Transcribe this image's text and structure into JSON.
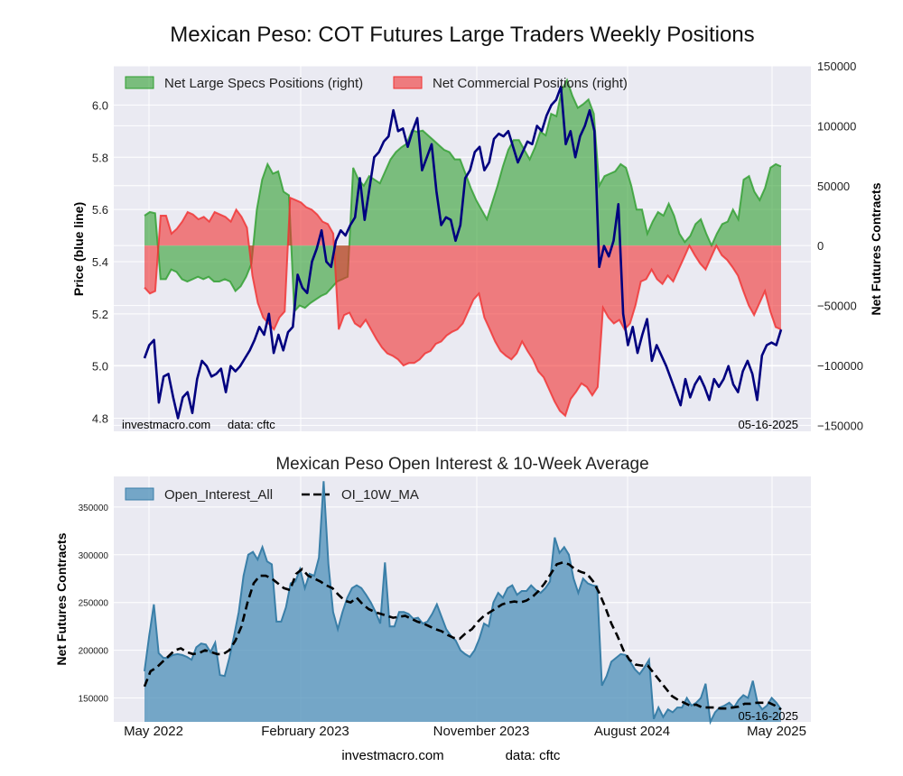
{
  "chart_data": [
    {
      "type": "area",
      "title": "Mexican Peso: COT Futures Large Traders Weekly Positions",
      "ylabel_left": "Price (blue line)",
      "ylabel_right": "Net Futures Contracts",
      "ylim_left": [
        4.75,
        6.15
      ],
      "ylim_right": [
        -155000,
        150000
      ],
      "yticks_left": [
        "4.8",
        "5.0",
        "5.2",
        "5.4",
        "5.6",
        "5.8",
        "6.0"
      ],
      "yticks_right": [
        "-150000",
        "-100000",
        "-50000",
        "0",
        "50000",
        "100000",
        "150000"
      ],
      "grid": true,
      "legend_placement": "top-left",
      "watermark": "investmacro.com",
      "source": "data: cftc",
      "date_label": "05-16-2025",
      "x_start": "2022-05-17",
      "x_end": "2025-05-16",
      "series": [
        {
          "name": "Net Large Specs Positions (right)",
          "color": "#2e9e2e",
          "values": [
            25000,
            28000,
            27000,
            -28000,
            -28000,
            -20000,
            -22000,
            -28000,
            -30000,
            -28000,
            -26000,
            -28000,
            -26000,
            -30000,
            -30000,
            -28000,
            -30000,
            -38000,
            -34000,
            -26000,
            -15000,
            30000,
            55000,
            68000,
            60000,
            62000,
            45000,
            42000,
            -55000,
            -50000,
            -52000,
            -48000,
            -45000,
            -42000,
            -40000,
            -35000,
            -30000,
            -28000,
            -26000,
            65000,
            55000,
            50000,
            58000,
            55000,
            52000,
            62000,
            72000,
            78000,
            82000,
            85000,
            96000,
            95000,
            96000,
            92000,
            88000,
            84000,
            80000,
            78000,
            72000,
            72000,
            60000,
            48000,
            38000,
            30000,
            22000,
            36000,
            50000,
            66000,
            80000,
            88000,
            88000,
            80000,
            72000,
            82000,
            95000,
            92000,
            110000,
            108000,
            130000,
            138000,
            125000,
            115000,
            118000,
            122000,
            110000,
            50000,
            58000,
            60000,
            62000,
            68000,
            65000,
            50000,
            30000,
            30000,
            10000,
            20000,
            28000,
            25000,
            35000,
            25000,
            10000,
            3000,
            8000,
            18000,
            22000,
            10000,
            0,
            10000,
            18000,
            20000,
            30000,
            22000,
            55000,
            58000,
            45000,
            38000,
            48000,
            65000,
            68000,
            66000
          ]
        },
        {
          "name": "Net Commercial Positions (right)",
          "color": "#f03030",
          "values": [
            -35000,
            -40000,
            -38000,
            25000,
            25000,
            10000,
            14000,
            20000,
            28000,
            26000,
            22000,
            24000,
            20000,
            28000,
            26000,
            24000,
            20000,
            30000,
            24000,
            15000,
            -25000,
            -48000,
            -60000,
            -65000,
            -70000,
            -60000,
            -55000,
            40000,
            38000,
            36000,
            32000,
            30000,
            26000,
            20000,
            18000,
            10000,
            -70000,
            -58000,
            -56000,
            -65000,
            -68000,
            -62000,
            -70000,
            -78000,
            -85000,
            -90000,
            -92000,
            -95000,
            -100000,
            -98000,
            -98000,
            -95000,
            -90000,
            -88000,
            -82000,
            -80000,
            -75000,
            -72000,
            -70000,
            -65000,
            -55000,
            -45000,
            -40000,
            -60000,
            -70000,
            -80000,
            -88000,
            -92000,
            -95000,
            -90000,
            -80000,
            -88000,
            -95000,
            -105000,
            -110000,
            -120000,
            -130000,
            -138000,
            -142000,
            -128000,
            -122000,
            -115000,
            -118000,
            -125000,
            -118000,
            -52000,
            -60000,
            -65000,
            -62000,
            -70000,
            -65000,
            -50000,
            -30000,
            -28000,
            -20000,
            -28000,
            -32000,
            -25000,
            -30000,
            -20000,
            -10000,
            0,
            -8000,
            -15000,
            -20000,
            -10000,
            0,
            -8000,
            -12000,
            -18000,
            -25000,
            -38000,
            -50000,
            -58000,
            -48000,
            -38000,
            -55000,
            -68000,
            -70000
          ]
        },
        {
          "name": "Price (blue line)",
          "color": "#00007f",
          "values": [
            5.03,
            5.08,
            5.1,
            4.86,
            4.96,
            4.97,
            4.88,
            4.8,
            4.88,
            4.9,
            4.82,
            4.95,
            5.02,
            5.0,
            4.96,
            4.97,
            4.99,
            4.9,
            5.0,
            4.98,
            5.0,
            5.03,
            5.06,
            5.1,
            5.15,
            5.12,
            5.2,
            5.05,
            5.12,
            5.06,
            5.13,
            5.15,
            5.35,
            5.3,
            5.28,
            5.4,
            5.45,
            5.52,
            5.4,
            5.38,
            5.48,
            5.52,
            5.5,
            5.54,
            5.57,
            5.72,
            5.56,
            5.68,
            5.8,
            5.82,
            5.86,
            5.88,
            5.98,
            5.9,
            5.91,
            5.84,
            5.9,
            5.95,
            5.75,
            5.8,
            5.85,
            5.67,
            5.54,
            5.57,
            5.56,
            5.48,
            5.54,
            5.72,
            5.75,
            5.82,
            5.84,
            5.75,
            5.78,
            5.87,
            5.89,
            5.88,
            5.9,
            5.84,
            5.78,
            5.82,
            5.86,
            5.85,
            5.92,
            5.9,
            5.96,
            6.0,
            6.02,
            6.07,
            5.85,
            5.9,
            5.8,
            5.88,
            5.92,
            5.98,
            5.9,
            5.38,
            5.46,
            5.42,
            5.48,
            5.62,
            5.2,
            5.08,
            5.15,
            5.05,
            5.12,
            5.18,
            5.02,
            5.08,
            5.04,
            5.0,
            4.95,
            4.9,
            4.85,
            4.95,
            4.88,
            4.93,
            4.96,
            4.92,
            4.87,
            4.95,
            4.92,
            4.95,
            5.0,
            4.93,
            4.9,
            4.98,
            5.02,
            4.97,
            4.87,
            5.04,
            5.08,
            5.09,
            5.08,
            5.14
          ]
        }
      ]
    },
    {
      "type": "area",
      "title": "Mexican Peso Open Interest & 10-Week Average",
      "ylabel": "Net Futures Contracts",
      "ylim": [
        125000,
        382000
      ],
      "yticks": [
        "150000",
        "200000",
        "250000",
        "300000",
        "350000"
      ],
      "xticks": [
        "May 2022",
        "February 2023",
        "November 2023",
        "August 2024",
        "May 2025"
      ],
      "grid": true,
      "legend_placement": "top-left",
      "date_label": "05-16-2025",
      "series": [
        {
          "name": "Open_Interest_All",
          "color": "#4c8fb8",
          "values": [
            178000,
            215000,
            248000,
            197000,
            192000,
            192000,
            195000,
            196000,
            195000,
            193000,
            190000,
            203000,
            207000,
            206000,
            198000,
            208000,
            174000,
            173000,
            192000,
            215000,
            240000,
            278000,
            300000,
            303000,
            295000,
            308000,
            293000,
            290000,
            230000,
            230000,
            245000,
            270000,
            272000,
            285000,
            265000,
            280000,
            278000,
            297000,
            377000,
            290000,
            240000,
            222000,
            240000,
            255000,
            265000,
            268000,
            265000,
            258000,
            250000,
            240000,
            228000,
            292000,
            225000,
            225000,
            240000,
            240000,
            238000,
            233000,
            234000,
            228000,
            230000,
            238000,
            248000,
            235000,
            222000,
            215000,
            210000,
            200000,
            196000,
            193000,
            200000,
            212000,
            228000,
            225000,
            250000,
            260000,
            255000,
            265000,
            268000,
            258000,
            262000,
            262000,
            268000,
            263000,
            260000,
            265000,
            272000,
            318000,
            302000,
            308000,
            300000,
            275000,
            260000,
            275000,
            270000,
            268000,
            267000,
            163000,
            173000,
            188000,
            192000,
            196000,
            195000,
            188000,
            180000,
            175000,
            182000,
            190000,
            128000,
            140000,
            130000,
            138000,
            135000,
            140000,
            140000,
            150000,
            142000,
            145000,
            150000,
            165000,
            125000,
            135000,
            140000,
            142000,
            145000,
            140000,
            148000,
            153000,
            150000,
            168000,
            145000,
            138000,
            142000,
            150000,
            145000,
            138000
          ]
        },
        {
          "name": "OI_10W_MA",
          "color": "#000000",
          "values": [
            162000,
            178000,
            182000,
            188000,
            194000,
            200000,
            202000,
            198000,
            196000,
            197000,
            200000,
            198000,
            196000,
            196000,
            200000,
            210000,
            225000,
            250000,
            270000,
            278000,
            278000,
            275000,
            270000,
            265000,
            263000,
            280000,
            285000,
            278000,
            275000,
            272000,
            268000,
            265000,
            258000,
            252000,
            250000,
            255000,
            248000,
            243000,
            240000,
            238000,
            236000,
            234000,
            235000,
            236000,
            233000,
            230000,
            228000,
            225000,
            222000,
            220000,
            216000,
            213000,
            212000,
            218000,
            222000,
            230000,
            236000,
            240000,
            244000,
            248000,
            250000,
            251000,
            250000,
            252000,
            256000,
            262000,
            270000,
            280000,
            290000,
            292000,
            290000,
            285000,
            282000,
            280000,
            272000,
            260000,
            245000,
            228000,
            215000,
            200000,
            190000,
            185000,
            184000,
            184000,
            176000,
            168000,
            160000,
            152000,
            148000,
            145000,
            142000,
            143000,
            140000,
            140000,
            140000,
            139000,
            139000,
            140000,
            141000,
            144000,
            144000,
            145000,
            145000,
            145000,
            142000,
            138000
          ]
        }
      ]
    }
  ],
  "footer": {
    "site": "investmacro.com",
    "source": "data: cftc"
  }
}
